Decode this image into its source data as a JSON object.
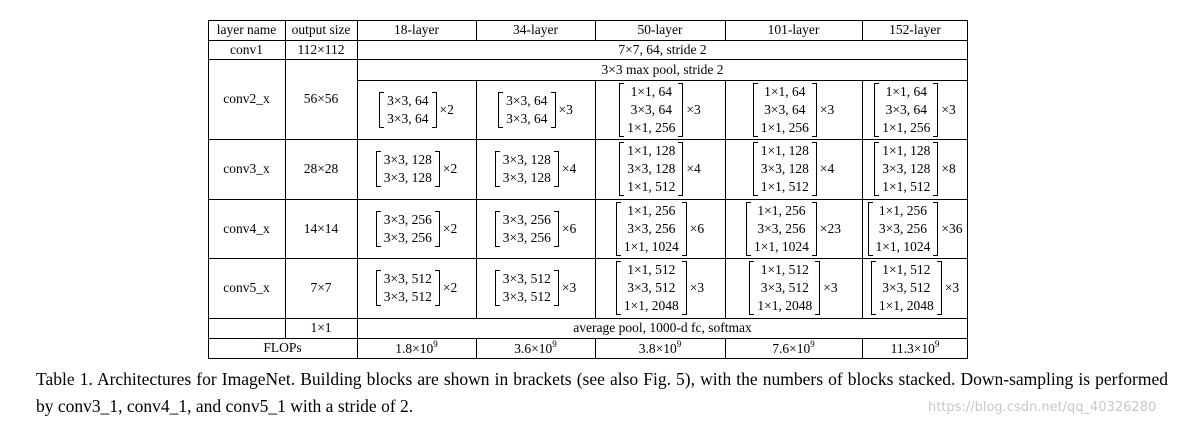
{
  "table": {
    "header": [
      "layer name",
      "output size",
      "18-layer",
      "34-layer",
      "50-layer",
      "101-layer",
      "152-layer"
    ],
    "rows": [
      {
        "name": "conv1",
        "output": "112×112",
        "span": "7×7, 64, stride 2"
      },
      {
        "name": "conv2_x",
        "output": "56×56",
        "span": "3×3 max pool, stride 2",
        "blocks": [
          {
            "lines": [
              "3×3, 64",
              "3×3, 64"
            ],
            "times": "×2"
          },
          {
            "lines": [
              "3×3, 64",
              "3×3, 64"
            ],
            "times": "×3"
          },
          {
            "lines": [
              "1×1, 64",
              "3×3, 64",
              "1×1, 256"
            ],
            "times": "×3"
          },
          {
            "lines": [
              "1×1, 64",
              "3×3, 64",
              "1×1, 256"
            ],
            "times": "×3"
          },
          {
            "lines": [
              "1×1, 64",
              "3×3, 64",
              "1×1, 256"
            ],
            "times": "×3"
          }
        ]
      },
      {
        "name": "conv3_x",
        "output": "28×28",
        "blocks": [
          {
            "lines": [
              "3×3, 128",
              "3×3, 128"
            ],
            "times": "×2"
          },
          {
            "lines": [
              "3×3, 128",
              "3×3, 128"
            ],
            "times": "×4"
          },
          {
            "lines": [
              "1×1, 128",
              "3×3, 128",
              "1×1, 512"
            ],
            "times": "×4"
          },
          {
            "lines": [
              "1×1, 128",
              "3×3, 128",
              "1×1, 512"
            ],
            "times": "×4"
          },
          {
            "lines": [
              "1×1, 128",
              "3×3, 128",
              "1×1, 512"
            ],
            "times": "×8"
          }
        ]
      },
      {
        "name": "conv4_x",
        "output": "14×14",
        "blocks": [
          {
            "lines": [
              "3×3, 256",
              "3×3, 256"
            ],
            "times": "×2"
          },
          {
            "lines": [
              "3×3, 256",
              "3×3, 256"
            ],
            "times": "×6"
          },
          {
            "lines": [
              "1×1, 256",
              "3×3, 256",
              "1×1, 1024"
            ],
            "times": "×6"
          },
          {
            "lines": [
              "1×1, 256",
              "3×3, 256",
              "1×1, 1024"
            ],
            "times": "×23"
          },
          {
            "lines": [
              "1×1, 256",
              "3×3, 256",
              "1×1, 1024"
            ],
            "times": "×36"
          }
        ]
      },
      {
        "name": "conv5_x",
        "output": "7×7",
        "blocks": [
          {
            "lines": [
              "3×3, 512",
              "3×3, 512"
            ],
            "times": "×2"
          },
          {
            "lines": [
              "3×3, 512",
              "3×3, 512"
            ],
            "times": "×3"
          },
          {
            "lines": [
              "1×1, 512",
              "3×3, 512",
              "1×1, 2048"
            ],
            "times": "×3"
          },
          {
            "lines": [
              "1×1, 512",
              "3×3, 512",
              "1×1, 2048"
            ],
            "times": "×3"
          },
          {
            "lines": [
              "1×1, 512",
              "3×3, 512",
              "1×1, 2048"
            ],
            "times": "×3"
          }
        ]
      }
    ],
    "pool": {
      "output": "1×1",
      "span": "average pool, 1000-d fc, softmax"
    },
    "flops": {
      "label": "FLOPs",
      "values": [
        {
          "base": "1.8×10",
          "exp": "9"
        },
        {
          "base": "3.6×10",
          "exp": "9"
        },
        {
          "base": "3.8×10",
          "exp": "9"
        },
        {
          "base": "7.6×10",
          "exp": "9"
        },
        {
          "base": "11.3×10",
          "exp": "9"
        }
      ]
    }
  },
  "caption": "Table 1. Architectures for ImageNet. Building blocks are shown in brackets (see also Fig. 5), with the numbers of blocks stacked. Down-sampling is performed by conv3_1, conv4_1, and conv5_1 with a stride of 2.",
  "watermark": "https://blog.csdn.net/qq_40326280"
}
